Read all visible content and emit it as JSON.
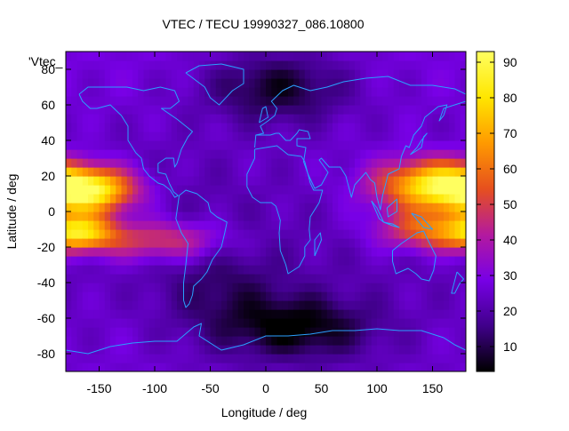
{
  "chart_data": {
    "type": "heatmap",
    "title": "VTEC / TECU 19990327_086.10800",
    "xlabel": "Longitude / deg",
    "ylabel": "Latitude / deg",
    "corner_label": "'Vtec_",
    "xlim": [
      -180,
      180
    ],
    "ylim": [
      -90,
      90
    ],
    "x_ticks": [
      -150,
      -100,
      -50,
      0,
      50,
      100,
      150
    ],
    "y_ticks": [
      -80,
      -60,
      -40,
      -20,
      0,
      20,
      40,
      60,
      80
    ],
    "colorbar": {
      "range": [
        3,
        93
      ],
      "ticks": [
        10,
        20,
        30,
        40,
        50,
        60,
        70,
        80,
        90
      ],
      "palette": [
        "#000000",
        "#40008a",
        "#7800e6",
        "#b41a9e",
        "#e6501e",
        "#ff9a00",
        "#ffe600",
        "#ffff60"
      ]
    },
    "grid": false,
    "legend": "none",
    "overlay": "continent coastlines",
    "overlay_color": "#2aa0ff",
    "field_model": {
      "background_tecu": 28,
      "background_sources": [
        {
          "lon": -120,
          "lat": 5,
          "lon_width": 70,
          "lat_width": 32,
          "amplitude": -6
        },
        {
          "lon": 45,
          "lat": -40,
          "lon_width": 120,
          "lat_width": 60,
          "amplitude": -6
        }
      ],
      "peaks_tecu": [
        {
          "lon": -158,
          "lat": 12,
          "lon_width": 30,
          "lat_width": 9,
          "amplitude": 58
        },
        {
          "lon": -165,
          "lat": -12,
          "lon_width": 22,
          "lat_width": 7,
          "amplitude": 45
        },
        {
          "lon": -95,
          "lat": -16,
          "lon_width": 40,
          "lat_width": 8,
          "amplitude": 28
        },
        {
          "lon": 150,
          "lat": 15,
          "lon_width": 36,
          "lat_width": 10,
          "amplitude": 56
        },
        {
          "lon": 148,
          "lat": -10,
          "lon_width": 32,
          "lat_width": 8,
          "amplitude": 35
        }
      ],
      "troughs_tecu": [
        {
          "lon": 10,
          "lat": 70,
          "lon_width": 45,
          "lat_width": 14,
          "amplitude": -20
        },
        {
          "lon": 30,
          "lat": -65,
          "lon_width": 45,
          "lat_width": 12,
          "amplitude": -20
        },
        {
          "lon": -40,
          "lat": -45,
          "lon_width": 40,
          "lat_width": 20,
          "amplitude": -10
        }
      ]
    }
  }
}
